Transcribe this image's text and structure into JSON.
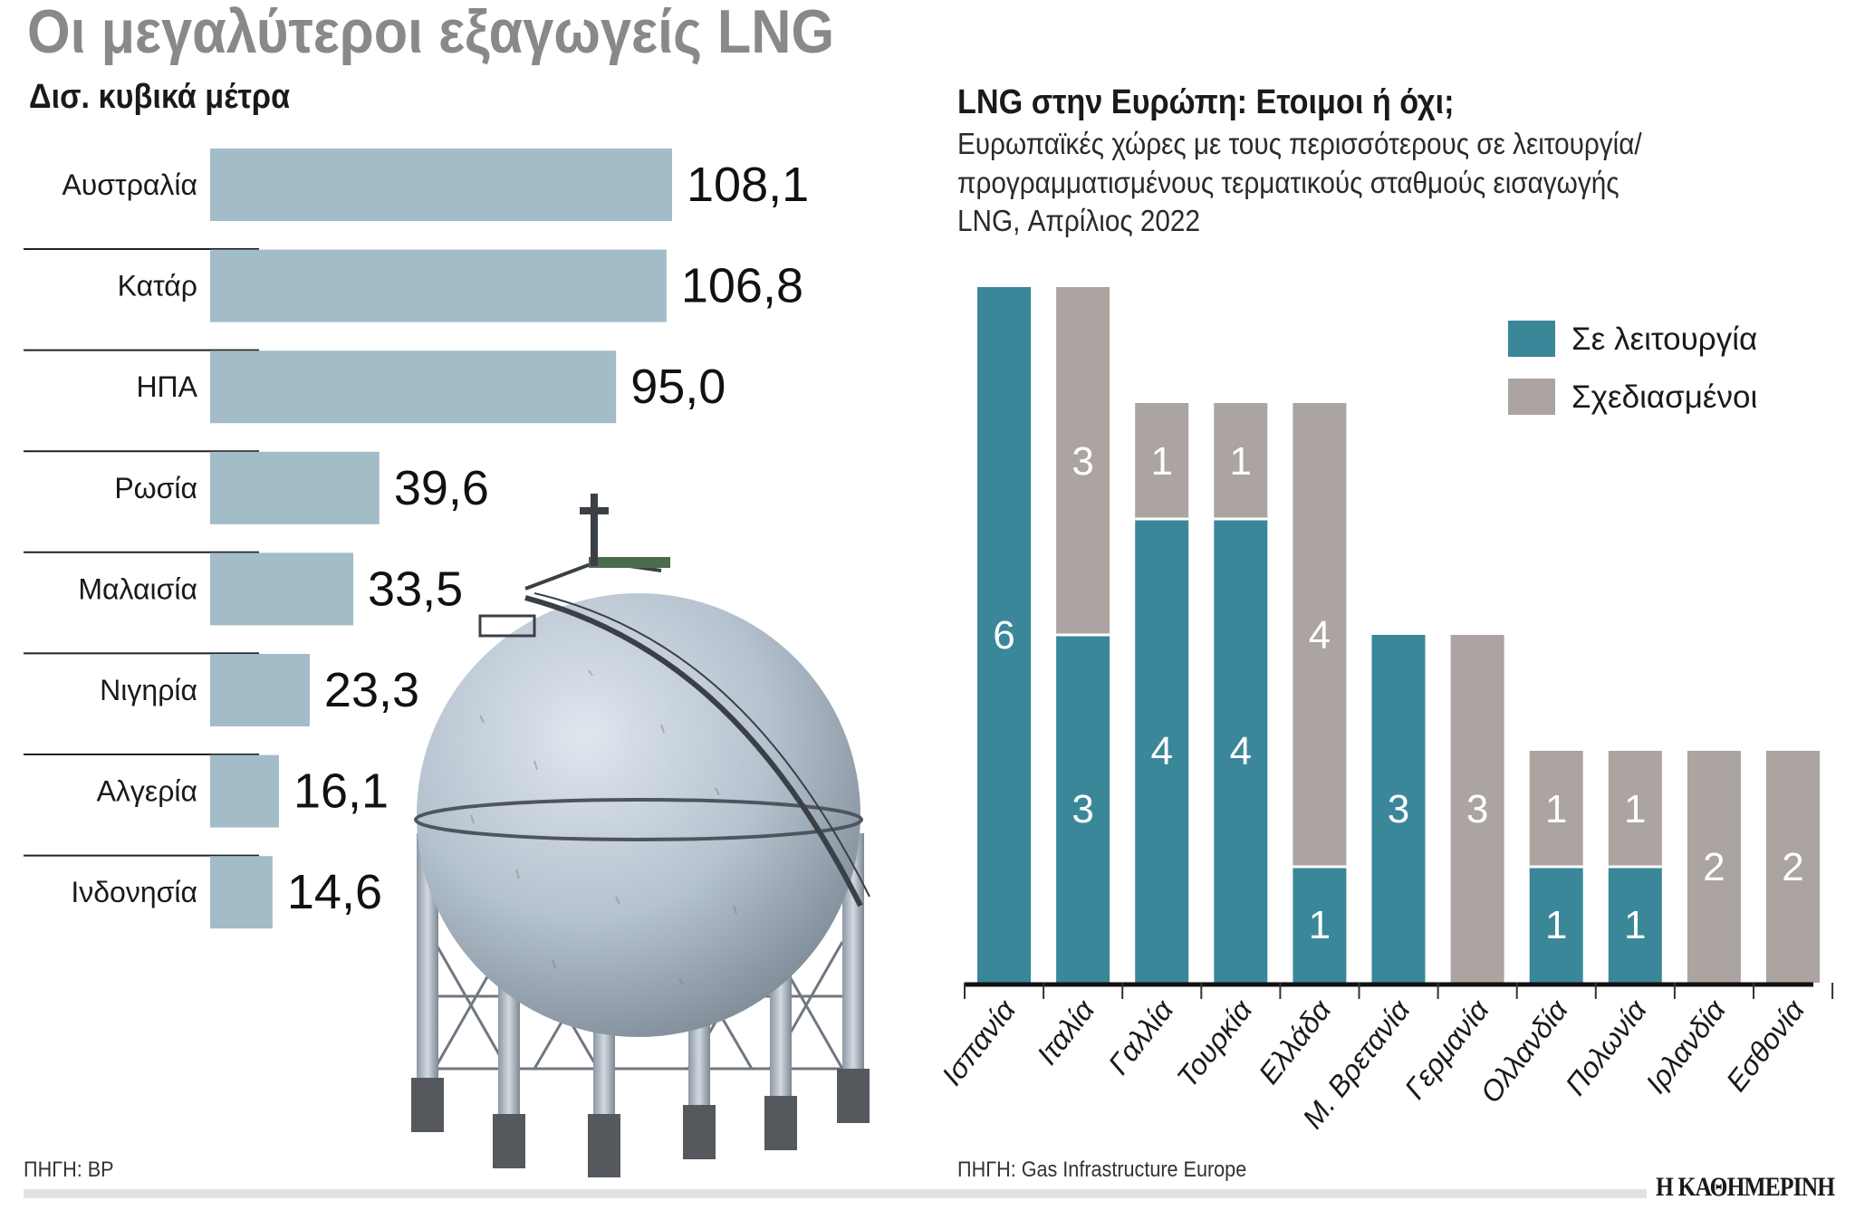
{
  "left": {
    "title": "Οι μεγαλύτεροι εξαγωγείς LNG",
    "subtitle": "Δισ. κυβικά μέτρα",
    "source": "ΠΗΓΗ: BP"
  },
  "right": {
    "title": "LNG στην Ευρώπη: Ετοιμοι ή όχι;",
    "subtitle_lines": [
      "Ευρωπαϊκές χώρες με τους περισσότερους σε λειτουργία/",
      "προγραμματισμένους τερματικούς σταθμούς εισαγωγής",
      "LNG, Απρίλιος 2022"
    ],
    "source": "ΠΗΓΗ: Gas Infrastructure Europe"
  },
  "logo": "Η ΚΑΘΗΜΕΡΙΝΗ",
  "chart_data": [
    {
      "type": "bar",
      "orientation": "horizontal",
      "title": "Οι μεγαλύτεροι εξαγωγείς LNG",
      "unit": "Δισ. κυβικά μέτρα",
      "categories": [
        "Αυστραλία",
        "Κατάρ",
        "ΗΠΑ",
        "Ρωσία",
        "Μαλαισία",
        "Νιγηρία",
        "Αλγερία",
        "Ινδονησία"
      ],
      "values": [
        108.1,
        106.8,
        95.0,
        39.6,
        33.5,
        23.3,
        16.1,
        14.6
      ],
      "labels": [
        "108,1",
        "106,8",
        "95,0",
        "39,6",
        "33,5",
        "23,3",
        "16,1",
        "14,6"
      ],
      "color": "#a2bcc8"
    },
    {
      "type": "bar",
      "stacked": true,
      "title": "LNG στην Ευρώπη: Ετοιμοι ή όχι;",
      "categories": [
        "Ισπανία",
        "Ιταλία",
        "Γαλλία",
        "Τουρκία",
        "Ελλάδα",
        "Μ. Βρετανία",
        "Γερμανία",
        "Ολλανδία",
        "Πολωνία",
        "Ιρλανδία",
        "Εσθονία"
      ],
      "series": [
        {
          "name": "Σε λειτουργία",
          "color": "#3a8799",
          "values": [
            6,
            3,
            4,
            4,
            1,
            3,
            0,
            1,
            1,
            0,
            0
          ]
        },
        {
          "name": "Σχεδιασμένοι",
          "color": "#aba4a0",
          "values": [
            0,
            3,
            1,
            1,
            4,
            0,
            3,
            1,
            1,
            2,
            2
          ]
        }
      ],
      "legend": "top-right",
      "grid": false
    }
  ]
}
